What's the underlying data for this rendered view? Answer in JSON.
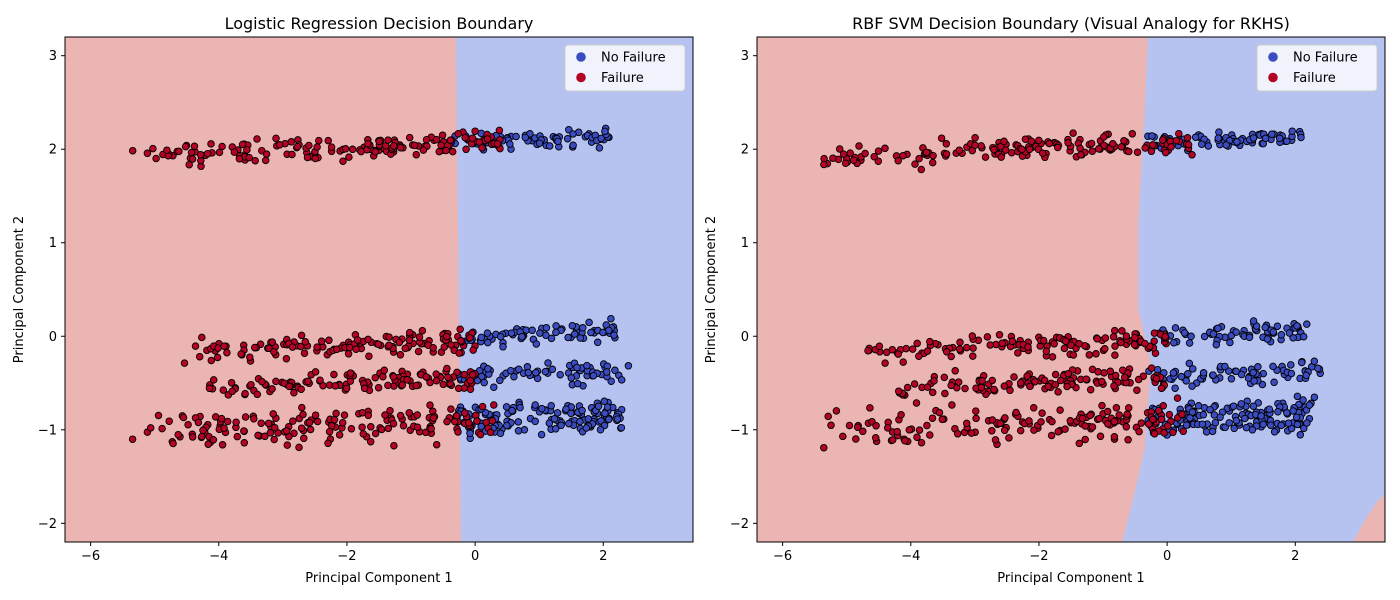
{
  "figure": {
    "background": "#ffffff"
  },
  "colors": {
    "failure_region": "#eab5b2",
    "no_failure_region": "#b6c3f0",
    "failure_point": "#b40426",
    "no_failure_point": "#3b4cc0",
    "marker_edge": "#000000"
  },
  "chart_data": [
    {
      "type": "scatter",
      "title": "Logistic Regression Decision Boundary",
      "xlabel": "Principal Component 1",
      "ylabel": "Principal Component 2",
      "xlim": [
        -6.4,
        3.4
      ],
      "ylim": [
        -2.2,
        3.2
      ],
      "xticks": [
        -6,
        -4,
        -2,
        0,
        2
      ],
      "yticks": [
        -2,
        -1,
        0,
        1,
        2,
        3
      ],
      "grid": false,
      "legend": {
        "placement": "upper right",
        "entries": [
          "No Failure",
          "Failure"
        ]
      },
      "decision_regions": {
        "left_class": "Failure",
        "right_class": "No Failure",
        "boundary": [
          [
            -0.3,
            3.2
          ],
          [
            -0.28,
            2.0
          ],
          [
            -0.25,
            0.0
          ],
          [
            -0.22,
            -2.2
          ]
        ]
      },
      "series": [
        {
          "name": "No Failure",
          "clusters": [
            {
              "y": 2.1,
              "x_range": [
                -0.4,
                2.1
              ],
              "y_spread": 0.05
            },
            {
              "y": 0.02,
              "x_range": [
                -0.3,
                2.2
              ],
              "y_spread": 0.05
            },
            {
              "y": -0.4,
              "x_range": [
                -0.3,
                2.4
              ],
              "y_spread": 0.05
            },
            {
              "y": -0.8,
              "x_range": [
                -0.3,
                2.3
              ],
              "y_spread": 0.05
            },
            {
              "y": -0.95,
              "x_range": [
                -0.3,
                2.3
              ],
              "y_spread": 0.05
            }
          ]
        },
        {
          "name": "Failure",
          "clusters": [
            {
              "y": 2.0,
              "x_range": [
                -5.4,
                0.4
              ],
              "y_spread": 0.06
            },
            {
              "y": -0.1,
              "x_range": [
                -4.7,
                0.0
              ],
              "y_spread": 0.06
            },
            {
              "y": -0.5,
              "x_range": [
                -4.2,
                0.0
              ],
              "y_spread": 0.06
            },
            {
              "y": -0.95,
              "x_range": [
                -5.4,
                0.3
              ],
              "y_spread": 0.1
            }
          ]
        }
      ]
    },
    {
      "type": "scatter",
      "title": "RBF SVM Decision Boundary (Visual Analogy for RKHS)",
      "xlabel": "Principal Component 1",
      "ylabel": "Principal Component 2",
      "xlim": [
        -6.4,
        3.4
      ],
      "ylim": [
        -2.2,
        3.2
      ],
      "xticks": [
        -6,
        -4,
        -2,
        0,
        2
      ],
      "yticks": [
        -2,
        -1,
        0,
        1,
        2,
        3
      ],
      "grid": false,
      "legend": {
        "placement": "upper right",
        "entries": [
          "No Failure",
          "Failure"
        ]
      },
      "decision_regions": {
        "left_class": "Failure",
        "right_class": "No Failure",
        "boundary": [
          [
            -0.3,
            3.2
          ],
          [
            -0.35,
            2.4
          ],
          [
            -0.45,
            1.2
          ],
          [
            -0.45,
            0.3
          ],
          [
            -0.25,
            -0.3
          ],
          [
            -0.35,
            -1.2
          ],
          [
            -0.55,
            -1.8
          ],
          [
            -0.7,
            -2.2
          ]
        ],
        "far_right_region": {
          "class": "Failure",
          "boundary": [
            [
              2.9,
              -2.2
            ],
            [
              3.1,
              -1.95
            ],
            [
              3.3,
              -1.75
            ],
            [
              3.4,
              -1.7
            ]
          ]
        }
      },
      "series": [
        {
          "name": "No Failure",
          "clusters": [
            {
              "y": 2.1,
              "x_range": [
                -0.4,
                2.1
              ],
              "y_spread": 0.05
            },
            {
              "y": 0.02,
              "x_range": [
                -0.3,
                2.2
              ],
              "y_spread": 0.05
            },
            {
              "y": -0.4,
              "x_range": [
                -0.3,
                2.4
              ],
              "y_spread": 0.05
            },
            {
              "y": -0.8,
              "x_range": [
                -0.3,
                2.3
              ],
              "y_spread": 0.05
            },
            {
              "y": -0.95,
              "x_range": [
                -0.3,
                2.3
              ],
              "y_spread": 0.05
            }
          ]
        },
        {
          "name": "Failure",
          "clusters": [
            {
              "y": 2.0,
              "x_range": [
                -5.4,
                0.4
              ],
              "y_spread": 0.06
            },
            {
              "y": -0.1,
              "x_range": [
                -4.7,
                0.0
              ],
              "y_spread": 0.06
            },
            {
              "y": -0.5,
              "x_range": [
                -4.2,
                0.0
              ],
              "y_spread": 0.06
            },
            {
              "y": -0.95,
              "x_range": [
                -5.4,
                0.3
              ],
              "y_spread": 0.1
            }
          ]
        }
      ]
    }
  ]
}
